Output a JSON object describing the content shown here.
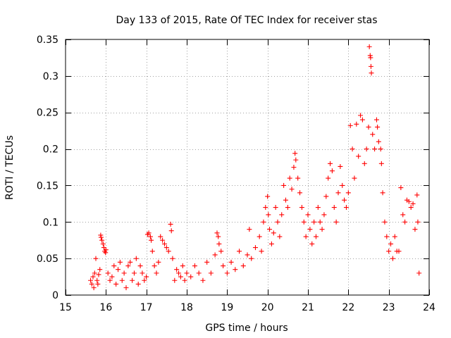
{
  "chart_data": {
    "type": "scatter",
    "title": "Day 133 of 2015, Rate Of TEC Index for receiver stas",
    "xlabel": "GPS time / hours",
    "ylabel": "ROTI / TECUs",
    "xlim": [
      15,
      24
    ],
    "ylim": [
      0,
      0.35
    ],
    "x_ticks": [
      15,
      16,
      17,
      18,
      19,
      20,
      21,
      22,
      23,
      24
    ],
    "x_tick_labels": [
      "15",
      "16",
      "17",
      "18",
      "19",
      "20",
      "21",
      "22",
      "23",
      "24"
    ],
    "y_ticks": [
      0,
      0.05,
      0.1,
      0.15,
      0.2,
      0.25,
      0.3,
      0.35
    ],
    "y_tick_labels": [
      "0",
      "0.05",
      "0.1",
      "0.15",
      "0.2",
      "0.25",
      "0.3",
      "0.35"
    ],
    "grid": true,
    "marker": "+",
    "color": "#ff0000",
    "series": [
      {
        "name": "ROTI",
        "points": [
          [
            15.62,
            0.02
          ],
          [
            15.65,
            0.015
          ],
          [
            15.68,
            0.025
          ],
          [
            15.7,
            0.01
          ],
          [
            15.72,
            0.03
          ],
          [
            15.75,
            0.05
          ],
          [
            15.78,
            0.02
          ],
          [
            15.8,
            0.015
          ],
          [
            15.82,
            0.028
          ],
          [
            15.85,
            0.035
          ],
          [
            15.87,
            0.082
          ],
          [
            15.88,
            0.079
          ],
          [
            15.9,
            0.075
          ],
          [
            15.93,
            0.07
          ],
          [
            15.95,
            0.065
          ],
          [
            15.97,
            0.06
          ],
          [
            15.99,
            0.058
          ],
          [
            16.0,
            0.062
          ],
          [
            16.05,
            0.03
          ],
          [
            16.1,
            0.02
          ],
          [
            16.15,
            0.025
          ],
          [
            16.2,
            0.04
          ],
          [
            16.25,
            0.015
          ],
          [
            16.3,
            0.035
          ],
          [
            16.35,
            0.045
          ],
          [
            16.4,
            0.02
          ],
          [
            16.45,
            0.03
          ],
          [
            16.5,
            0.01
          ],
          [
            16.55,
            0.04
          ],
          [
            16.6,
            0.045
          ],
          [
            16.65,
            0.02
          ],
          [
            16.7,
            0.03
          ],
          [
            16.75,
            0.05
          ],
          [
            16.8,
            0.015
          ],
          [
            16.85,
            0.04
          ],
          [
            16.9,
            0.03
          ],
          [
            16.95,
            0.02
          ],
          [
            17.0,
            0.025
          ],
          [
            17.03,
            0.083
          ],
          [
            17.06,
            0.085
          ],
          [
            17.1,
            0.08
          ],
          [
            17.12,
            0.075
          ],
          [
            17.15,
            0.06
          ],
          [
            17.2,
            0.04
          ],
          [
            17.25,
            0.03
          ],
          [
            17.3,
            0.045
          ],
          [
            17.35,
            0.08
          ],
          [
            17.4,
            0.075
          ],
          [
            17.45,
            0.07
          ],
          [
            17.5,
            0.065
          ],
          [
            17.55,
            0.06
          ],
          [
            17.6,
            0.097
          ],
          [
            17.62,
            0.088
          ],
          [
            17.65,
            0.05
          ],
          [
            17.7,
            0.02
          ],
          [
            17.75,
            0.035
          ],
          [
            17.8,
            0.03
          ],
          [
            17.85,
            0.025
          ],
          [
            17.9,
            0.04
          ],
          [
            17.95,
            0.02
          ],
          [
            18.0,
            0.03
          ],
          [
            18.1,
            0.025
          ],
          [
            18.2,
            0.04
          ],
          [
            18.3,
            0.03
          ],
          [
            18.4,
            0.02
          ],
          [
            18.5,
            0.045
          ],
          [
            18.6,
            0.03
          ],
          [
            18.7,
            0.055
          ],
          [
            18.75,
            0.085
          ],
          [
            18.78,
            0.08
          ],
          [
            18.8,
            0.07
          ],
          [
            18.85,
            0.06
          ],
          [
            18.9,
            0.04
          ],
          [
            19.0,
            0.03
          ],
          [
            19.1,
            0.045
          ],
          [
            19.2,
            0.035
          ],
          [
            19.3,
            0.06
          ],
          [
            19.4,
            0.04
          ],
          [
            19.5,
            0.055
          ],
          [
            19.55,
            0.09
          ],
          [
            19.6,
            0.05
          ],
          [
            19.7,
            0.065
          ],
          [
            19.8,
            0.08
          ],
          [
            19.85,
            0.06
          ],
          [
            19.9,
            0.1
          ],
          [
            19.95,
            0.12
          ],
          [
            20.0,
            0.135
          ],
          [
            20.02,
            0.11
          ],
          [
            20.05,
            0.09
          ],
          [
            20.1,
            0.07
          ],
          [
            20.15,
            0.085
          ],
          [
            20.2,
            0.12
          ],
          [
            20.25,
            0.1
          ],
          [
            20.3,
            0.08
          ],
          [
            20.35,
            0.11
          ],
          [
            20.4,
            0.15
          ],
          [
            20.45,
            0.13
          ],
          [
            20.5,
            0.12
          ],
          [
            20.55,
            0.16
          ],
          [
            20.6,
            0.145
          ],
          [
            20.65,
            0.175
          ],
          [
            20.68,
            0.194
          ],
          [
            20.7,
            0.185
          ],
          [
            20.75,
            0.16
          ],
          [
            20.8,
            0.14
          ],
          [
            20.85,
            0.12
          ],
          [
            20.9,
            0.1
          ],
          [
            20.95,
            0.08
          ],
          [
            21.0,
            0.11
          ],
          [
            21.05,
            0.09
          ],
          [
            21.1,
            0.07
          ],
          [
            21.15,
            0.1
          ],
          [
            21.2,
            0.08
          ],
          [
            21.25,
            0.12
          ],
          [
            21.3,
            0.1
          ],
          [
            21.35,
            0.09
          ],
          [
            21.4,
            0.11
          ],
          [
            21.45,
            0.135
          ],
          [
            21.5,
            0.16
          ],
          [
            21.55,
            0.18
          ],
          [
            21.6,
            0.17
          ],
          [
            21.65,
            0.12
          ],
          [
            21.7,
            0.1
          ],
          [
            21.75,
            0.14
          ],
          [
            21.8,
            0.176
          ],
          [
            21.85,
            0.15
          ],
          [
            21.9,
            0.13
          ],
          [
            21.95,
            0.12
          ],
          [
            22.0,
            0.14
          ],
          [
            22.05,
            0.232
          ],
          [
            22.1,
            0.2
          ],
          [
            22.15,
            0.16
          ],
          [
            22.2,
            0.234
          ],
          [
            22.25,
            0.19
          ],
          [
            22.3,
            0.246
          ],
          [
            22.35,
            0.24
          ],
          [
            22.4,
            0.18
          ],
          [
            22.45,
            0.2
          ],
          [
            22.5,
            0.23
          ],
          [
            22.52,
            0.34
          ],
          [
            22.54,
            0.328
          ],
          [
            22.55,
            0.325
          ],
          [
            22.56,
            0.313
          ],
          [
            22.57,
            0.304
          ],
          [
            22.6,
            0.22
          ],
          [
            22.65,
            0.2
          ],
          [
            22.7,
            0.24
          ],
          [
            22.72,
            0.23
          ],
          [
            22.75,
            0.21
          ],
          [
            22.8,
            0.2
          ],
          [
            22.82,
            0.18
          ],
          [
            22.85,
            0.14
          ],
          [
            22.9,
            0.1
          ],
          [
            22.95,
            0.08
          ],
          [
            23.0,
            0.06
          ],
          [
            23.05,
            0.07
          ],
          [
            23.1,
            0.05
          ],
          [
            23.15,
            0.08
          ],
          [
            23.2,
            0.06
          ],
          [
            23.25,
            0.06
          ],
          [
            23.3,
            0.147
          ],
          [
            23.35,
            0.11
          ],
          [
            23.4,
            0.1
          ],
          [
            23.45,
            0.13
          ],
          [
            23.5,
            0.128
          ],
          [
            23.55,
            0.12
          ],
          [
            23.6,
            0.125
          ],
          [
            23.65,
            0.09
          ],
          [
            23.7,
            0.137
          ],
          [
            23.72,
            0.1
          ],
          [
            23.75,
            0.03
          ]
        ]
      }
    ]
  }
}
